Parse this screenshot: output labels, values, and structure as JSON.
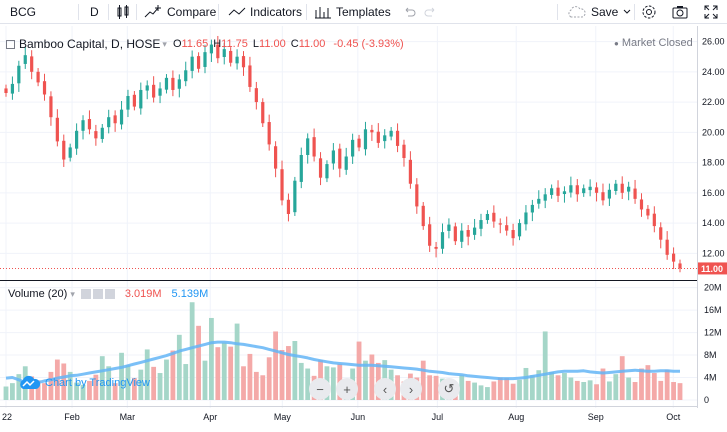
{
  "toolbar": {
    "symbol": "BCG",
    "interval": "D",
    "compare_label": "Compare",
    "indicators_label": "Indicators",
    "templates_label": "Templates",
    "save_label": "Save"
  },
  "legend": {
    "title": "Bamboo Capital, D, HOSE",
    "o_label": "O",
    "o_value": "11.65",
    "h_label": "H",
    "h_value": "11.75",
    "l_label": "L",
    "l_value": "11.00",
    "c_label": "C",
    "c_value": "11.00",
    "change": "-0.45 (-3.93%)",
    "market_status": "Market Closed"
  },
  "volume_legend": {
    "title": "Volume (20)",
    "volume_value": "3.019M",
    "ma_value": "5.139M"
  },
  "watermark": "Chart by TradingView",
  "colors": {
    "up": "#26a69a",
    "down": "#ef5350",
    "ma": "#64b5f6",
    "vol_up": "#a5d6c8",
    "vol_down": "#f4a9a8"
  },
  "chart_data": {
    "type": "candlestick",
    "price_axis": {
      "ticks": [
        "26.00",
        "24.00",
        "22.00",
        "20.00",
        "18.00",
        "16.00",
        "14.00",
        "12.00"
      ],
      "last_price": "11.00",
      "range": [
        10.5,
        26.5
      ]
    },
    "volume_axis": {
      "ticks": [
        "20M",
        "16M",
        "12M",
        "8M",
        "4M",
        "0"
      ],
      "range": [
        0,
        21
      ]
    },
    "time_axis": [
      "22",
      "Feb",
      "Mar",
      "Apr",
      "May",
      "Jun",
      "Jul",
      "Aug",
      "Sep",
      "Oct"
    ],
    "close_series": [
      22.6,
      23.2,
      24.4,
      25.1,
      24.0,
      23.3,
      22.5,
      21.0,
      19.4,
      18.2,
      19.0,
      20.1,
      20.8,
      20.2,
      19.6,
      20.3,
      21.0,
      20.6,
      21.5,
      22.4,
      21.7,
      22.8,
      23.1,
      22.3,
      22.9,
      23.6,
      22.8,
      23.5,
      24.1,
      25.0,
      24.2,
      25.3,
      25.8,
      24.9,
      25.5,
      24.6,
      25.0,
      24.3,
      23.0,
      22.0,
      20.6,
      19.2,
      17.6,
      15.5,
      14.6,
      16.8,
      18.5,
      19.6,
      18.4,
      17.0,
      17.9,
      18.8,
      17.6,
      18.4,
      19.5,
      19.0,
      20.2,
      20.0,
      19.3,
      19.8,
      20.1,
      19.1,
      18.3,
      16.6,
      15.1,
      13.8,
      12.5,
      12.3,
      13.4,
      13.9,
      12.8,
      13.5,
      13.1,
      13.7,
      14.2,
      14.6,
      14.1,
      13.9,
      13.5,
      13.0,
      14.0,
      14.7,
      15.2,
      15.6,
      15.9,
      16.3,
      15.8,
      16.1,
      16.5,
      15.9,
      16.3,
      16.4,
      16.0,
      15.5,
      16.2,
      16.6,
      16.0,
      16.4,
      15.6,
      14.9,
      14.5,
      13.8,
      12.9,
      11.9,
      11.45,
      11.0
    ],
    "volume_series_m": [
      2.4,
      3.0,
      4.6,
      6.0,
      4.2,
      3.5,
      3.0,
      5.0,
      7.2,
      6.5,
      5.0,
      3.1,
      2.7,
      3.4,
      4.5,
      7.8,
      6.0,
      3.0,
      8.4,
      6.2,
      3.9,
      5.4,
      9.0,
      5.9,
      4.8,
      7.2,
      8.8,
      11.6,
      6.4,
      17.4,
      13.2,
      7.0,
      14.6,
      9.4,
      10.2,
      9.5,
      13.6,
      6.0,
      8.2,
      5.0,
      4.4,
      7.6,
      12.2,
      8.9,
      9.6,
      10.5,
      6.6,
      5.6,
      4.3,
      7.1,
      6.0,
      5.8,
      6.4,
      3.3,
      5.6,
      10.4,
      7.0,
      8.1,
      6.6,
      7.1,
      5.4,
      4.4,
      3.3,
      4.7,
      4.0,
      7.0,
      4.4,
      4.3,
      3.8,
      3.6,
      3.0,
      4.4,
      3.4,
      3.1,
      2.6,
      2.3,
      3.3,
      4.0,
      3.9,
      2.9,
      3.6,
      5.7,
      4.4,
      5.3,
      12.2,
      5.0,
      4.4,
      4.8,
      4.0,
      3.4,
      3.2,
      3.5,
      2.8,
      5.6,
      3.3,
      4.6,
      7.8,
      4.0,
      3.2,
      5.6,
      6.2,
      4.8,
      3.4,
      5.4,
      3.2,
      3.0
    ],
    "ma_series_m": [
      3.9,
      4.0,
      3.6,
      3.1,
      3.0,
      3.1,
      3.4,
      3.6,
      3.9,
      4.1,
      4.3,
      4.4,
      4.6,
      4.8,
      5.0,
      5.2,
      5.4,
      5.6,
      5.8,
      6.1,
      6.4,
      6.7,
      7.0,
      7.3,
      7.6,
      7.9,
      8.3,
      8.7,
      9.0,
      9.3,
      9.6,
      9.9,
      10.2,
      10.3,
      10.3,
      10.2,
      10.0,
      9.9,
      9.7,
      9.5,
      9.3,
      9.0,
      8.7,
      8.4,
      8.1,
      7.9,
      7.7,
      7.5,
      7.2,
      7.0,
      6.8,
      6.6,
      6.5,
      6.4,
      6.3,
      6.2,
      6.2,
      6.2,
      6.1,
      6.0,
      5.9,
      5.8,
      5.7,
      5.6,
      5.5,
      5.3,
      5.1,
      5.0,
      4.9,
      4.7,
      4.6,
      4.5,
      4.3,
      4.2,
      4.1,
      4.0,
      3.9,
      3.8,
      3.8,
      3.8,
      3.9,
      4.0,
      4.2,
      4.4,
      4.6,
      4.8,
      5.0,
      5.1,
      5.1,
      5.1,
      5.2,
      5.0,
      4.9,
      4.8,
      4.9,
      5.0,
      5.1,
      5.2,
      5.3,
      5.2,
      5.1,
      5.1,
      5.2,
      5.2,
      5.1,
      5.1
    ]
  }
}
